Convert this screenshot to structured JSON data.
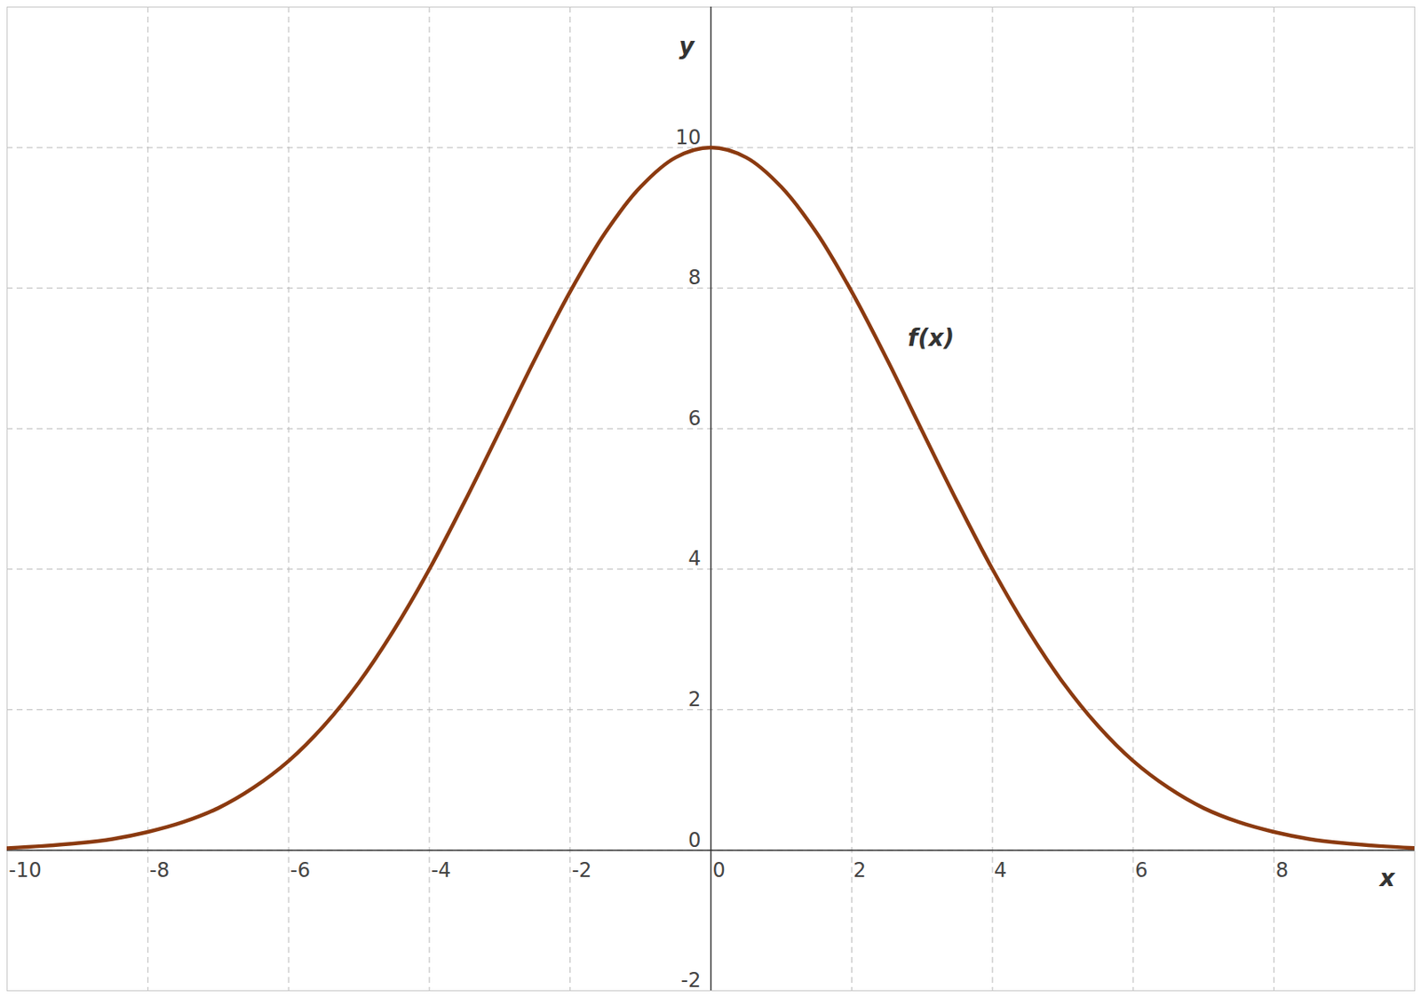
{
  "chart_data": {
    "type": "line",
    "x": [
      -10,
      -9.5,
      -9,
      -8.5,
      -8,
      -7.5,
      -7,
      -6.5,
      -6,
      -5.5,
      -5,
      -4.5,
      -4,
      -3.5,
      -3,
      -2.5,
      -2,
      -1.5,
      -1,
      -0.5,
      0,
      0.5,
      1,
      1.5,
      2,
      2.5,
      3,
      3.5,
      4,
      4.5,
      5,
      5.5,
      6,
      6.5,
      7,
      7.5,
      8,
      8.5,
      9,
      9.5,
      10
    ],
    "series": [
      {
        "name": "f(x)",
        "color": "#8b3a10",
        "values": [
          0.03,
          0.06,
          0.1,
          0.16,
          0.26,
          0.4,
          0.6,
          0.89,
          1.27,
          1.77,
          2.39,
          3.14,
          4.0,
          4.96,
          5.97,
          6.99,
          7.95,
          8.79,
          9.44,
          9.86,
          10,
          9.86,
          9.44,
          8.79,
          7.95,
          6.99,
          5.97,
          4.96,
          4.0,
          3.14,
          2.39,
          1.77,
          1.27,
          0.89,
          0.6,
          0.4,
          0.26,
          0.16,
          0.1,
          0.06,
          0.03
        ]
      }
    ],
    "xlabel": "x",
    "ylabel": "y",
    "xlim": [
      -10,
      10
    ],
    "ylim": [
      -2,
      12
    ],
    "xticks": [
      -10,
      -8,
      -6,
      -4,
      -2,
      0,
      2,
      4,
      6,
      8
    ],
    "yticks": [
      -2,
      0,
      2,
      4,
      6,
      8,
      10
    ],
    "grid": true
  }
}
